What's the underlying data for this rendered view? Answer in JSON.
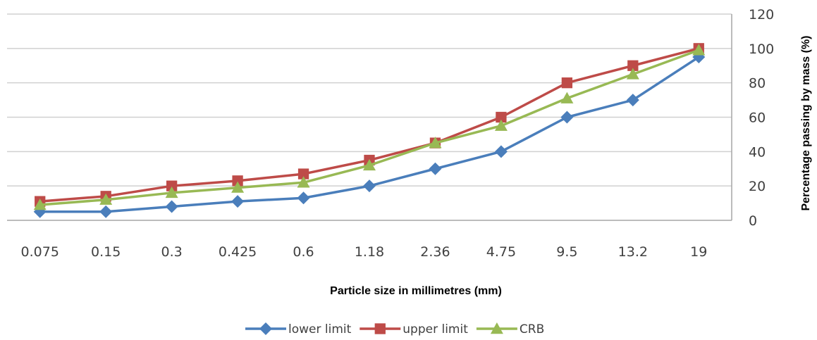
{
  "chart_data": {
    "type": "line",
    "title": "",
    "xlabel": "Particle size in millimetres (mm)",
    "ylabel": "Percentage passing by mass (%)",
    "categories": [
      "0.075",
      "0.15",
      "0.3",
      "0.425",
      "0.6",
      "1.18",
      "2.36",
      "4.75",
      "9.5",
      "13.2",
      "19"
    ],
    "ylim": [
      0,
      120
    ],
    "yticks": [
      "0",
      "20",
      "40",
      "60",
      "80",
      "100",
      "120"
    ],
    "y_axis_side": "right",
    "grid": true,
    "legend_position": "bottom",
    "series": [
      {
        "name": "lower limit",
        "color": "#4A7EBB",
        "marker": "diamond",
        "values": [
          5,
          5,
          8,
          11,
          13,
          20,
          30,
          40,
          60,
          70,
          95
        ]
      },
      {
        "name": "upper limit",
        "color": "#BE4B48",
        "marker": "square",
        "values": [
          11,
          14,
          20,
          23,
          27,
          35,
          45,
          60,
          80,
          90,
          100
        ]
      },
      {
        "name": "CRB",
        "color": "#98B954",
        "marker": "triangle",
        "values": [
          9,
          12,
          16,
          19,
          22,
          32,
          45,
          55,
          71,
          85,
          99
        ]
      }
    ]
  }
}
